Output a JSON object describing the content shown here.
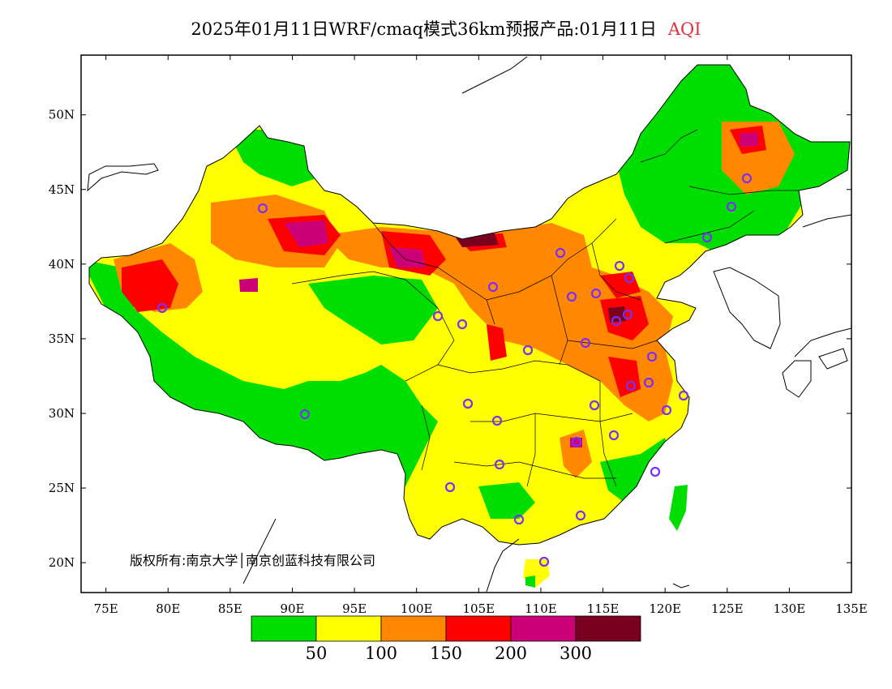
{
  "title": {
    "main": "2025年01月11日WRF/cmaq模式36km预报产品:01月11日",
    "variable": "AQI",
    "variable_color": "#e0303a"
  },
  "map": {
    "lon_range": [
      73,
      135
    ],
    "lat_range": [
      18,
      54
    ],
    "x_ticks": [
      "75E",
      "80E",
      "85E",
      "90E",
      "95E",
      "100E",
      "105E",
      "110E",
      "115E",
      "120E",
      "125E",
      "130E",
      "135E"
    ],
    "y_ticks": [
      "50N",
      "45N",
      "40N",
      "35N",
      "30N",
      "25N",
      "20N"
    ],
    "copyright": "版权所有:南京大学│南京创蓝科技有限公司",
    "background_color": "#ffffff",
    "land_base_color": "#ffff00"
  },
  "legend": {
    "bins": [
      {
        "color": "#00dd00",
        "upper": "50"
      },
      {
        "color": "#ffff00",
        "upper": "100"
      },
      {
        "color": "#ff8800",
        "upper": "150"
      },
      {
        "color": "#ff0000",
        "upper": "200"
      },
      {
        "color": "#cc0077",
        "upper": "300"
      },
      {
        "color": "#7a0020",
        "upper": ""
      }
    ],
    "labels": [
      "50",
      "100",
      "150",
      "200",
      "300"
    ]
  },
  "stations_color": "#7b2ff7"
}
